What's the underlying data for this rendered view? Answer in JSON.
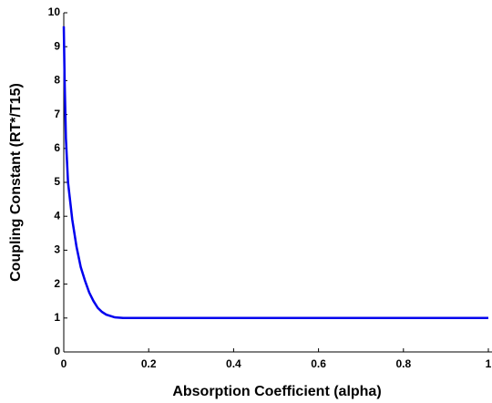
{
  "chart_data": {
    "type": "line",
    "x_label": "Absorption Coefficient (alpha)",
    "y_label": "Coupling Constant (RT*/T15)",
    "xlim": [
      0,
      1
    ],
    "xticks": [
      0,
      0.2,
      0.4,
      0.6,
      0.8,
      1
    ],
    "ylim": [
      0,
      10
    ],
    "yticks": [
      0,
      1,
      2,
      3,
      4,
      5,
      6,
      7,
      8,
      9,
      10
    ],
    "grid": false,
    "series": [
      {
        "color": "#0000ee",
        "x": [
          0,
          0.002,
          0.005,
          0.01,
          0.02,
          0.03,
          0.04,
          0.05,
          0.06,
          0.07,
          0.08,
          0.09,
          0.1,
          0.12,
          0.14,
          0.2,
          0.4,
          0.6,
          0.8,
          1
        ],
        "values": [
          9.6,
          8,
          6.3,
          5,
          3.9,
          3.1,
          2.5,
          2.1,
          1.75,
          1.5,
          1.3,
          1.18,
          1.1,
          1.02,
          1.0,
          1,
          1,
          1,
          1,
          1
        ]
      }
    ]
  }
}
